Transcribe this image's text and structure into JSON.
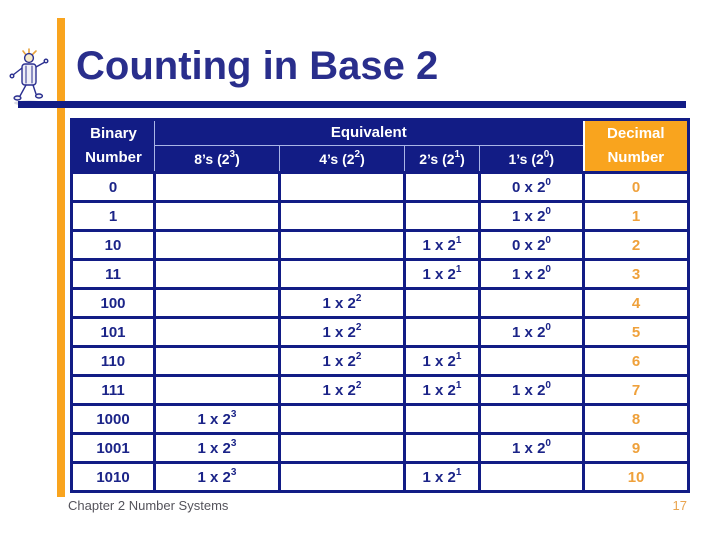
{
  "slide": {
    "title": "Counting in Base 2",
    "footer": "Chapter 2 Number Systems",
    "page_number": "17"
  },
  "colors": {
    "navy": "#121C85",
    "title_navy": "#292E8C",
    "cell_text_navy": "#1B2488",
    "orange": "#F9A41E",
    "orange_text": "#EFA13B",
    "footer_gray": "#54535B",
    "page_orange": "#E9A44F",
    "header_divider": "#A9B5E6"
  },
  "icons": {
    "clipart": "walking-robot-clipart"
  },
  "table": {
    "header": {
      "binary_lines": [
        "Binary",
        "Number"
      ],
      "equivalent": "Equivalent",
      "decimal_lines": [
        "Decimal",
        "Number"
      ],
      "columns": [
        {
          "key": "8s",
          "pre": "8’s (2",
          "sup": "3",
          "post": ")"
        },
        {
          "key": "4s",
          "pre": "4’s (2",
          "sup": "2",
          "post": ")"
        },
        {
          "key": "2s",
          "pre": "2’s (2",
          "sup": "1",
          "post": ")"
        },
        {
          "key": "1s",
          "pre": "1’s (2",
          "sup": "0",
          "post": ")"
        }
      ]
    },
    "rows": [
      {
        "binary": "0",
        "cells": [
          null,
          null,
          null,
          {
            "pre": "0 x 2",
            "sup": "0"
          }
        ],
        "decimal": "0"
      },
      {
        "binary": "1",
        "cells": [
          null,
          null,
          null,
          {
            "pre": "1 x 2",
            "sup": "0"
          }
        ],
        "decimal": "1"
      },
      {
        "binary": "10",
        "cells": [
          null,
          null,
          {
            "pre": "1 x 2",
            "sup": "1"
          },
          {
            "pre": "0 x 2",
            "sup": "0"
          }
        ],
        "decimal": "2"
      },
      {
        "binary": "11",
        "cells": [
          null,
          null,
          {
            "pre": "1 x 2",
            "sup": "1"
          },
          {
            "pre": "1 x 2",
            "sup": "0"
          }
        ],
        "decimal": "3"
      },
      {
        "binary": "100",
        "cells": [
          null,
          {
            "pre": "1 x 2",
            "sup": "2"
          },
          null,
          null
        ],
        "decimal": "4"
      },
      {
        "binary": "101",
        "cells": [
          null,
          {
            "pre": "1 x 2",
            "sup": "2"
          },
          null,
          {
            "pre": "1 x 2",
            "sup": "0"
          }
        ],
        "decimal": "5"
      },
      {
        "binary": "110",
        "cells": [
          null,
          {
            "pre": "1 x 2",
            "sup": "2"
          },
          {
            "pre": "1 x 2",
            "sup": "1"
          },
          null
        ],
        "decimal": "6"
      },
      {
        "binary": "111",
        "cells": [
          null,
          {
            "pre": "1 x 2",
            "sup": "2"
          },
          {
            "pre": "1 x 2",
            "sup": "1"
          },
          {
            "pre": "1 x 2",
            "sup": "0"
          }
        ],
        "decimal": "7"
      },
      {
        "binary": "1000",
        "cells": [
          {
            "pre": "1 x 2",
            "sup": "3"
          },
          null,
          null,
          null
        ],
        "decimal": "8"
      },
      {
        "binary": "1001",
        "cells": [
          {
            "pre": "1 x 2",
            "sup": "3"
          },
          null,
          null,
          {
            "pre": "1 x 2",
            "sup": "0"
          }
        ],
        "decimal": "9"
      },
      {
        "binary": "1010",
        "cells": [
          {
            "pre": "1 x 2",
            "sup": "3"
          },
          null,
          {
            "pre": "1 x 2",
            "sup": "1"
          },
          null
        ],
        "decimal": "10"
      }
    ]
  }
}
